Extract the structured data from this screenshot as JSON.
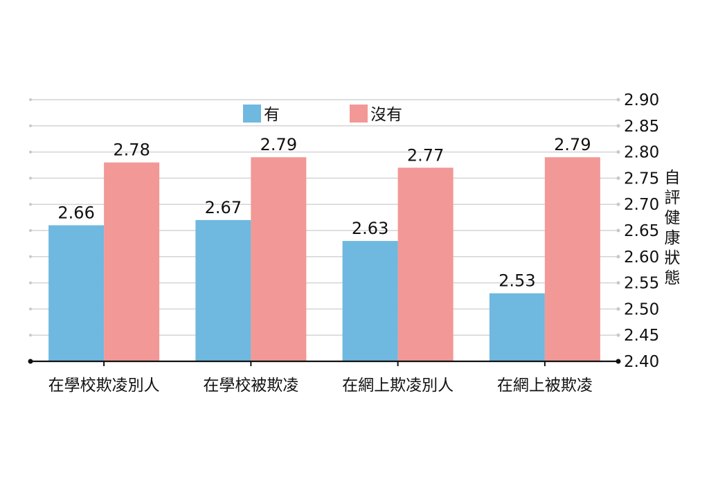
{
  "chart_data": {
    "type": "bar",
    "categories": [
      "在學校欺凌別人",
      "在學校被欺凌",
      "在網上欺凌別人",
      "在網上被欺凌"
    ],
    "series": [
      {
        "name": "有",
        "color": "#6fb8df",
        "values": [
          2.66,
          2.67,
          2.63,
          2.53
        ]
      },
      {
        "name": "沒有",
        "color": "#f29896",
        "values": [
          2.78,
          2.79,
          2.77,
          2.79
        ]
      }
    ],
    "ylabel": "自評健康狀態",
    "ylim": [
      2.4,
      2.9
    ],
    "yticks": [
      "2.40",
      "2.45",
      "2.50",
      "2.55",
      "2.60",
      "2.65",
      "2.70",
      "2.75",
      "2.80",
      "2.85",
      "2.90"
    ],
    "y_axis_side": "right",
    "grid": true,
    "legend_position": "top-center",
    "data_labels": [
      [
        "2.66",
        "2.67",
        "2.63",
        "2.53"
      ],
      [
        "2.78",
        "2.79",
        "2.77",
        "2.79"
      ]
    ]
  }
}
